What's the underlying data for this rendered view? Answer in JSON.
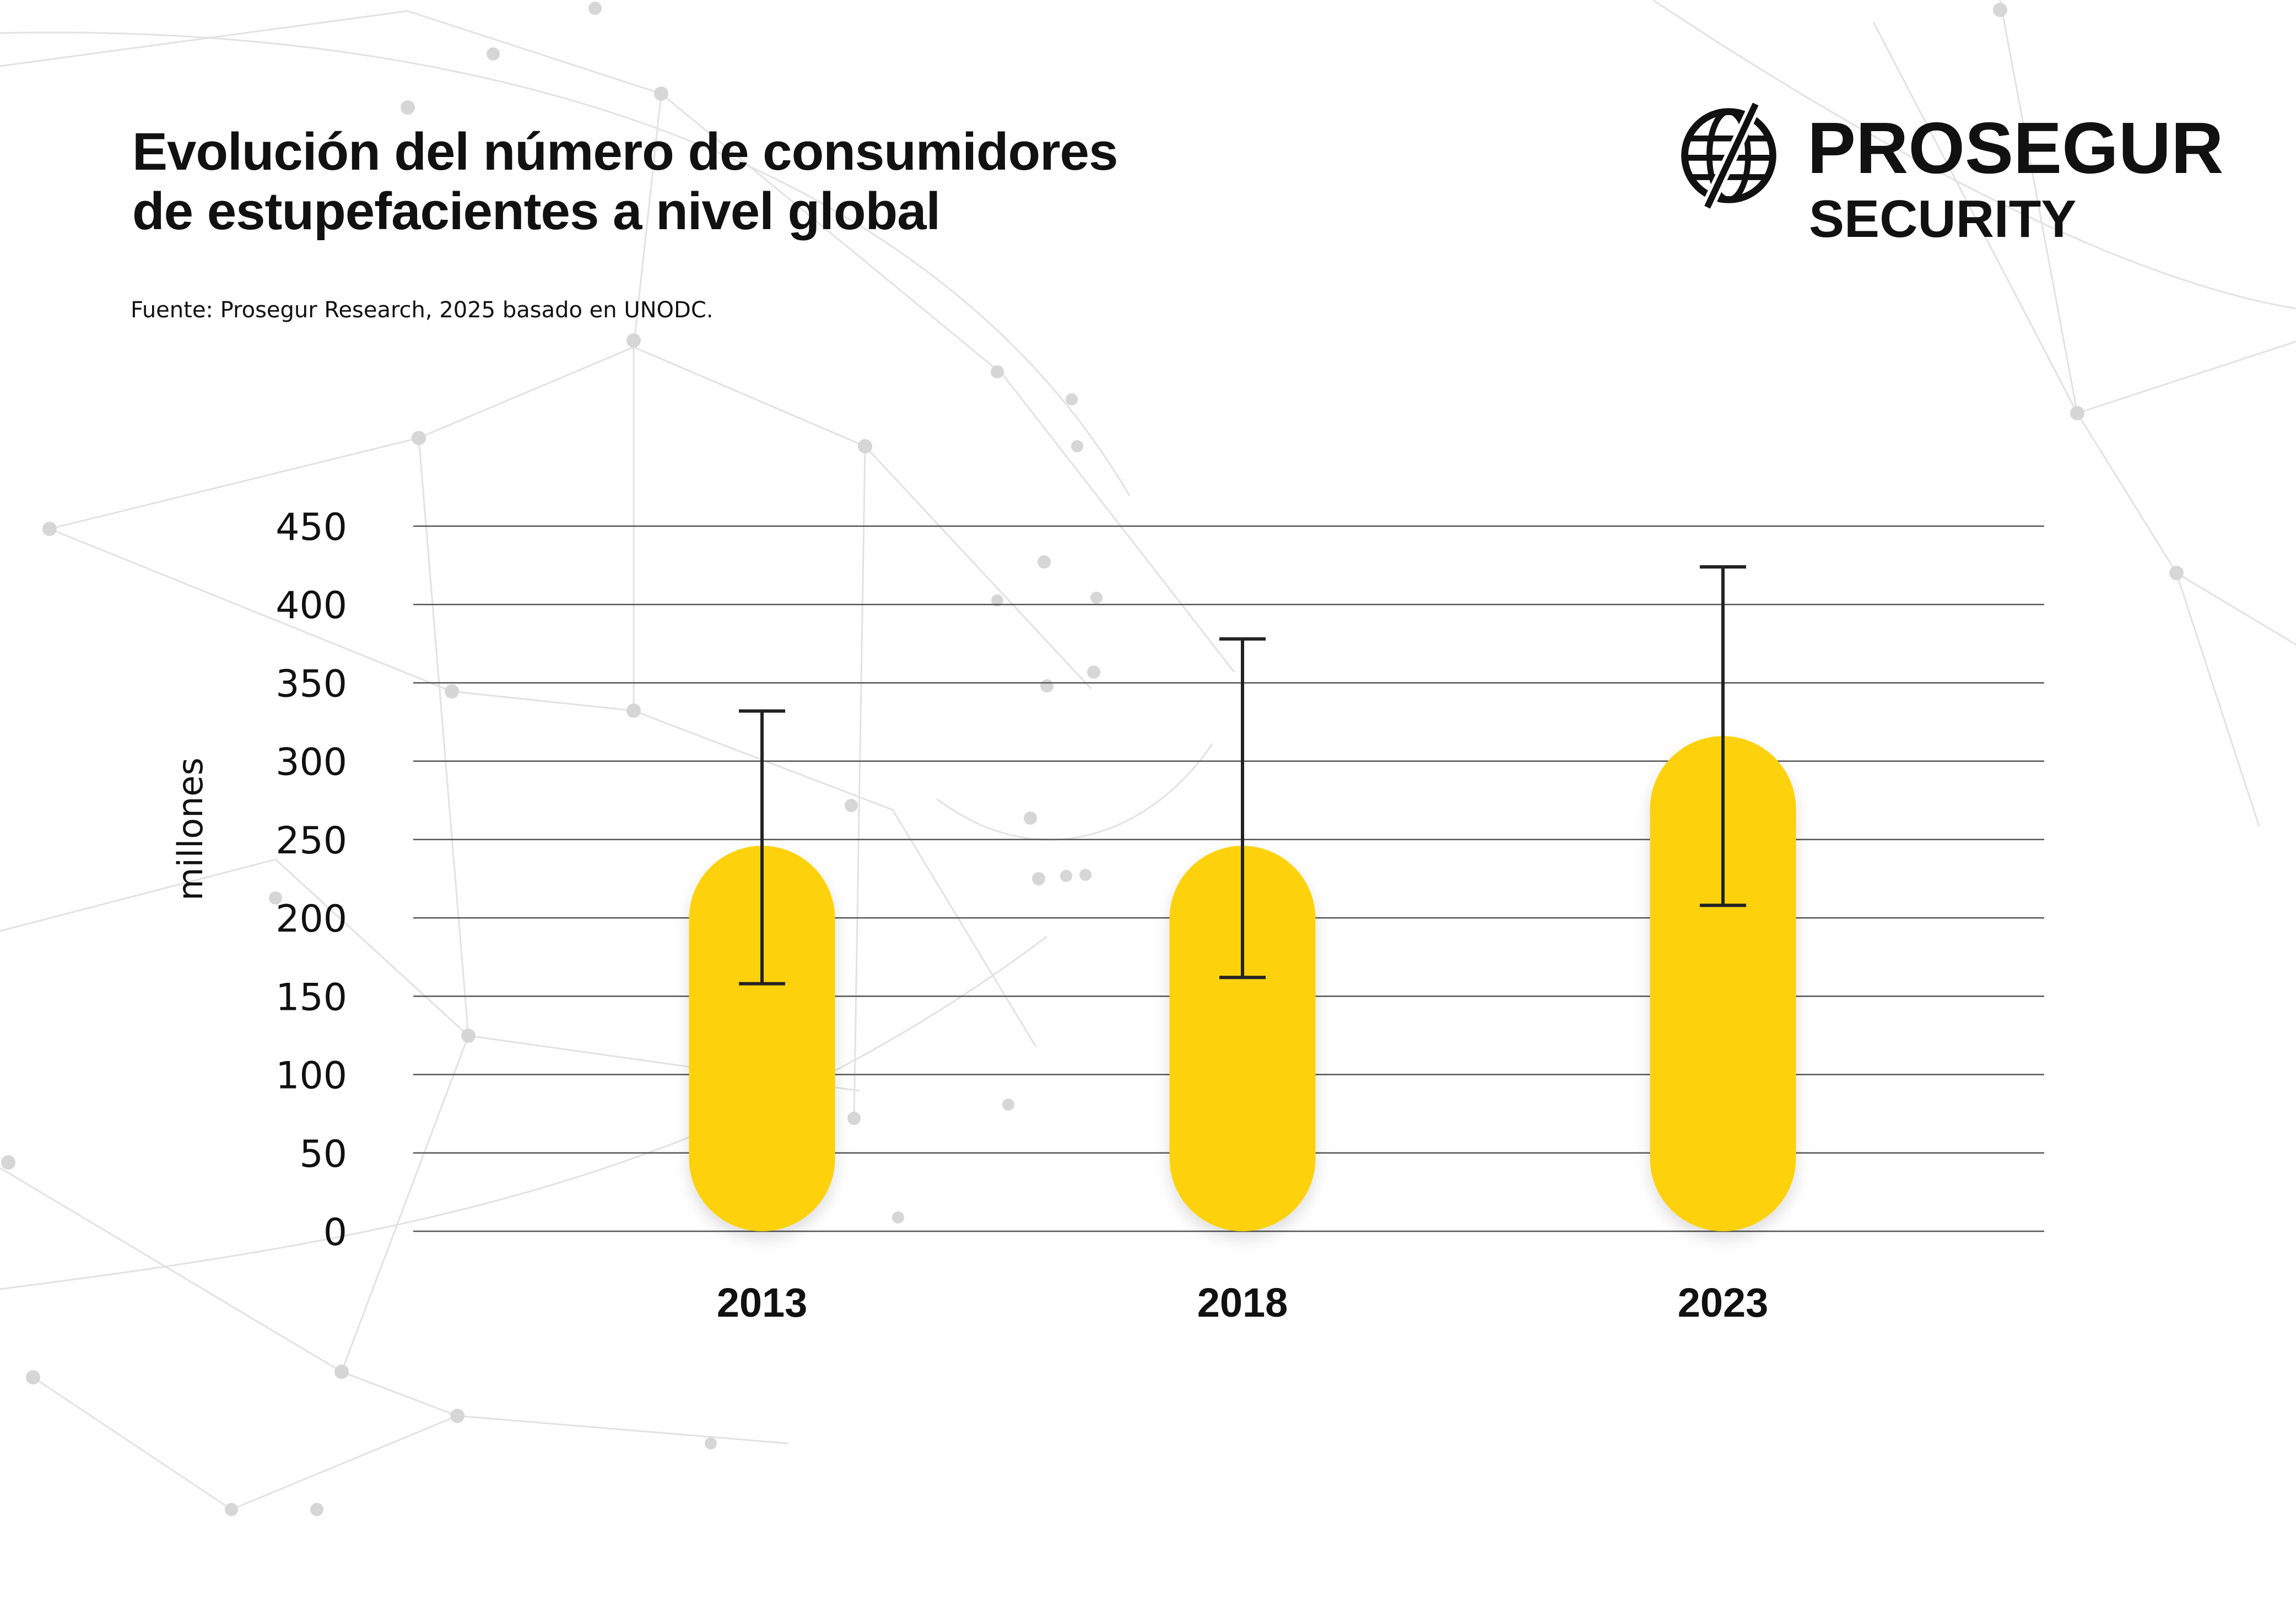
{
  "header": {
    "title_line1": "Evolución del número de consumidores",
    "title_line2": "de estupefacientes a nivel global",
    "source": "Fuente: Prosegur Research, 2025 basado en UNODC."
  },
  "brand": {
    "name": "PROSEGUR",
    "sub": "SECURITY",
    "icon": "globe-icon"
  },
  "colors": {
    "bar": "#FDD20A",
    "text": "#111111",
    "grid": "#555555",
    "error_bar": "#222222",
    "background_network": "#cfcfcf"
  },
  "chart_data": {
    "type": "bar",
    "title": "Evolución del número de consumidores de estupefacientes a nivel global",
    "ylabel": "millones",
    "xlabel": "",
    "ylim": [
      0,
      450
    ],
    "yticks": [
      0,
      50,
      100,
      150,
      200,
      250,
      300,
      350,
      400,
      450
    ],
    "categories": [
      "2013",
      "2018",
      "2023"
    ],
    "values": [
      246,
      246,
      316
    ],
    "error_low": [
      158,
      162,
      208
    ],
    "error_high": [
      332,
      378,
      424
    ],
    "grid": true,
    "legend": "none",
    "bar_style": "rounded pill"
  }
}
